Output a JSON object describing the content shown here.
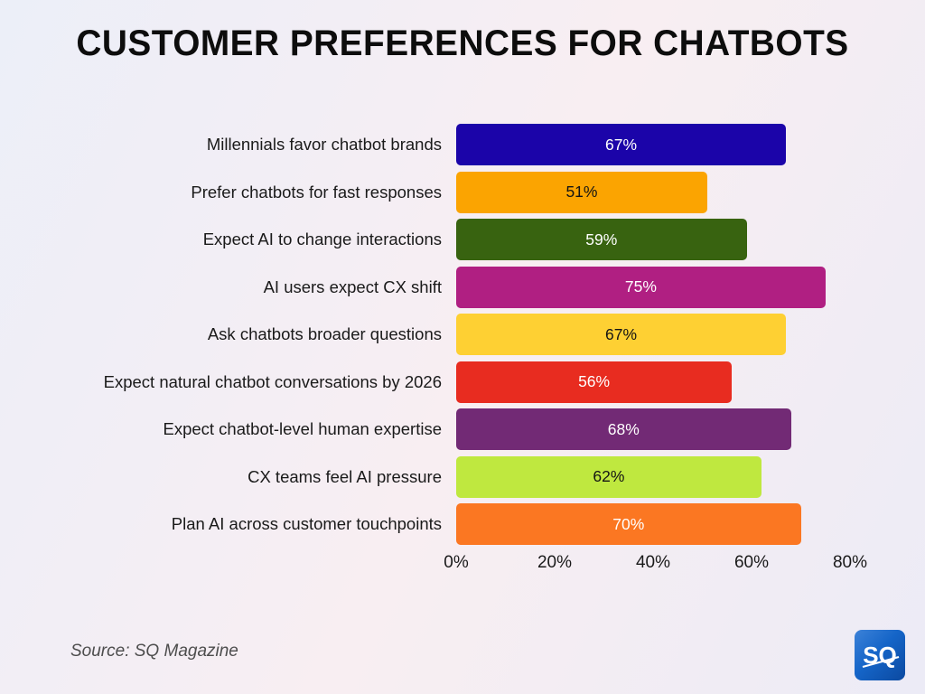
{
  "title": "CUSTOMER PREFERENCES FOR CHATBOTS",
  "source": "Source: SQ Magazine",
  "logo": {
    "text": "SQ"
  },
  "chart_data": {
    "type": "bar",
    "orientation": "horizontal",
    "title": "CUSTOMER PREFERENCES FOR CHATBOTS",
    "xlabel": "",
    "ylabel": "",
    "xlim": [
      0,
      80
    ],
    "x_ticks": [
      "0%",
      "20%",
      "40%",
      "60%",
      "80%"
    ],
    "x_tick_values": [
      0,
      20,
      40,
      60,
      80
    ],
    "grid": false,
    "legend": "none",
    "categories": [
      "Millennials favor chatbot brands",
      "Prefer chatbots for fast responses",
      "Expect AI to change interactions",
      "AI users expect CX shift",
      "Ask chatbots broader questions",
      "Expect natural chatbot conversations by 2026",
      "Expect chatbot-level human expertise",
      "CX teams feel AI pressure",
      "Plan AI across customer touchpoints"
    ],
    "values": [
      67,
      51,
      59,
      75,
      67,
      56,
      68,
      62,
      70
    ],
    "value_labels": [
      "67%",
      "51%",
      "59%",
      "75%",
      "67%",
      "56%",
      "68%",
      "62%",
      "70%"
    ],
    "bar_colors": [
      "#1b04a9",
      "#fba401",
      "#386310",
      "#b01f82",
      "#fed033",
      "#e82c20",
      "#722a75",
      "#bfe83f",
      "#fb7722"
    ],
    "value_label_colors": [
      "#ffffff",
      "#141414",
      "#ffffff",
      "#ffffff",
      "#141414",
      "#ffffff",
      "#ffffff",
      "#141414",
      "#ffffff"
    ]
  }
}
